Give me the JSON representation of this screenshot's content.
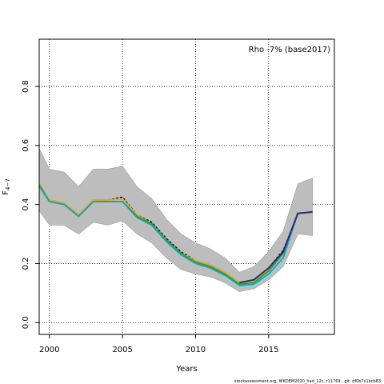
{
  "chart_data": {
    "type": "line",
    "title": "",
    "annotation": "Rho -7% (base2017)",
    "xlabel": "Years",
    "ylabel_main": "F",
    "ylabel_sub": "4−7",
    "xlim": [
      1999.3,
      2019.5
    ],
    "ylim": [
      -0.04,
      0.96
    ],
    "x_ticks": [
      2000,
      2005,
      2010,
      2015
    ],
    "y_ticks": [
      0.0,
      0.2,
      0.4,
      0.6,
      0.8
    ],
    "y_tick_labels": [
      "0.0",
      "0.2",
      "0.4",
      "0.6",
      "0.8"
    ],
    "grid": "dotted",
    "footer": "stockassessment.org, WKDEM2020_had_12c, r11769 , git: df0b7c1bcb83",
    "band": {
      "x": [
        1999,
        2000,
        2001,
        2002,
        2003,
        2004,
        2005,
        2006,
        2007,
        2008,
        2009,
        2010,
        2011,
        2012,
        2013,
        2014,
        2015,
        2016,
        2017,
        2018
      ],
      "upper": [
        0.62,
        0.52,
        0.51,
        0.46,
        0.52,
        0.52,
        0.53,
        0.46,
        0.42,
        0.35,
        0.3,
        0.27,
        0.25,
        0.22,
        0.17,
        0.19,
        0.24,
        0.31,
        0.47,
        0.49
      ],
      "lower": [
        0.4,
        0.33,
        0.33,
        0.3,
        0.34,
        0.33,
        0.345,
        0.3,
        0.27,
        0.22,
        0.18,
        0.165,
        0.155,
        0.135,
        0.105,
        0.115,
        0.145,
        0.19,
        0.3,
        0.295
      ]
    },
    "series": [
      {
        "color": "#000000",
        "dashed": true,
        "x": [
          1999,
          2000,
          2001,
          2002,
          2003,
          2004,
          2005,
          2006,
          2007,
          2008,
          2009,
          2010,
          2011,
          2012,
          2013,
          2014,
          2015,
          2016,
          2017,
          2018
        ],
        "values": [
          0.49,
          0.415,
          0.405,
          0.365,
          0.415,
          0.415,
          0.425,
          0.365,
          0.34,
          0.285,
          0.24,
          0.21,
          0.195,
          0.17,
          0.135,
          0.145,
          0.185,
          0.245,
          0.37,
          0.375
        ]
      },
      {
        "color": "#e0a82e",
        "x": [
          1999,
          2000,
          2001,
          2002,
          2003,
          2004,
          2005,
          2006,
          2007,
          2008,
          2009,
          2010,
          2011,
          2012,
          2013,
          2014,
          2015,
          2016,
          2017,
          2018
        ],
        "values": [
          0.495,
          0.415,
          0.405,
          0.365,
          0.415,
          0.415,
          0.42,
          0.365,
          0.335,
          0.28,
          0.235,
          0.21,
          0.195,
          0.17,
          0.135,
          0.14,
          0.18,
          0.24,
          0.37,
          0.375
        ]
      },
      {
        "color": "#2ca02c",
        "x": [
          1999,
          2000,
          2001,
          2002,
          2003,
          2004,
          2005,
          2006,
          2007,
          2008,
          2009,
          2010,
          2011,
          2012,
          2013,
          2014,
          2015,
          2016,
          2017,
          2018
        ],
        "values": [
          0.49,
          0.41,
          0.4,
          0.36,
          0.41,
          0.41,
          0.41,
          0.36,
          0.335,
          0.28,
          0.235,
          0.205,
          0.19,
          0.165,
          0.13,
          0.135,
          0.175,
          0.235,
          0.37,
          0.375
        ]
      },
      {
        "color": "#17a2b8",
        "x": [
          1999,
          2000,
          2001,
          2002,
          2003,
          2004,
          2005,
          2006,
          2007,
          2008,
          2009,
          2010,
          2011,
          2012,
          2013,
          2014,
          2015,
          2016,
          2017,
          2018
        ],
        "values": [
          0.485,
          0.41,
          0.4,
          0.36,
          0.41,
          0.41,
          0.41,
          0.355,
          0.33,
          0.275,
          0.23,
          0.2,
          0.185,
          0.16,
          0.125,
          0.13,
          0.165,
          0.22,
          0.37,
          0.375
        ]
      },
      {
        "color": "#8fd3e0",
        "x": [
          2012,
          2013,
          2014,
          2015,
          2016
        ],
        "values": [
          0.155,
          0.12,
          0.125,
          0.155,
          0.2
        ]
      },
      {
        "color": "#2d2a7a",
        "x": [
          2013,
          2014,
          2015,
          2016,
          2017,
          2018
        ],
        "values": [
          0.135,
          0.145,
          0.185,
          0.24,
          0.37,
          0.375
        ]
      }
    ]
  }
}
